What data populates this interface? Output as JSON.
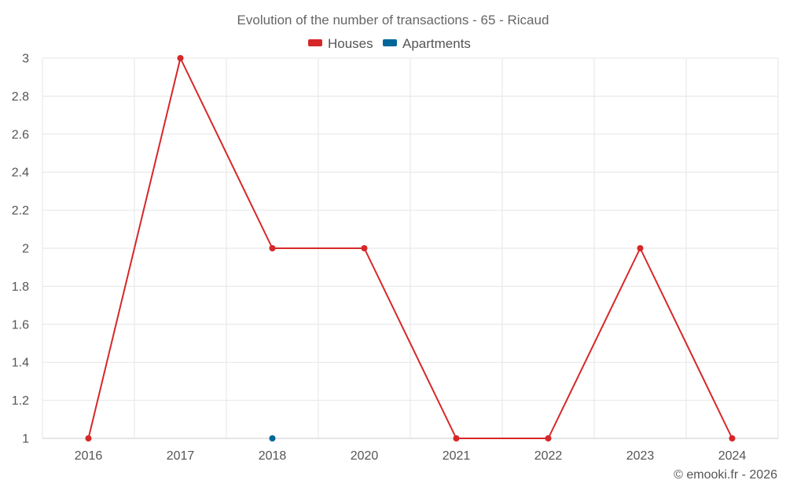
{
  "chart_data": {
    "type": "line",
    "title": "Evolution of the number of transactions - 65 - Ricaud",
    "categories": [
      "2016",
      "2017",
      "2018",
      "2020",
      "2021",
      "2022",
      "2023",
      "2024"
    ],
    "series": [
      {
        "name": "Houses",
        "color": "#d62728",
        "values": [
          1,
          3,
          2,
          2,
          1,
          1,
          2,
          1
        ]
      },
      {
        "name": "Apartments",
        "color": "#006699",
        "values": [
          null,
          null,
          1,
          null,
          null,
          null,
          null,
          null
        ]
      }
    ],
    "yticks": [
      "1",
      "1.2",
      "1.4",
      "1.6",
      "1.8",
      "2",
      "2.2",
      "2.4",
      "2.6",
      "2.8",
      "3"
    ],
    "ylim": [
      1,
      3
    ],
    "grid": true,
    "legend_position": "top-center"
  },
  "credit": "© emooki.fr - 2026"
}
